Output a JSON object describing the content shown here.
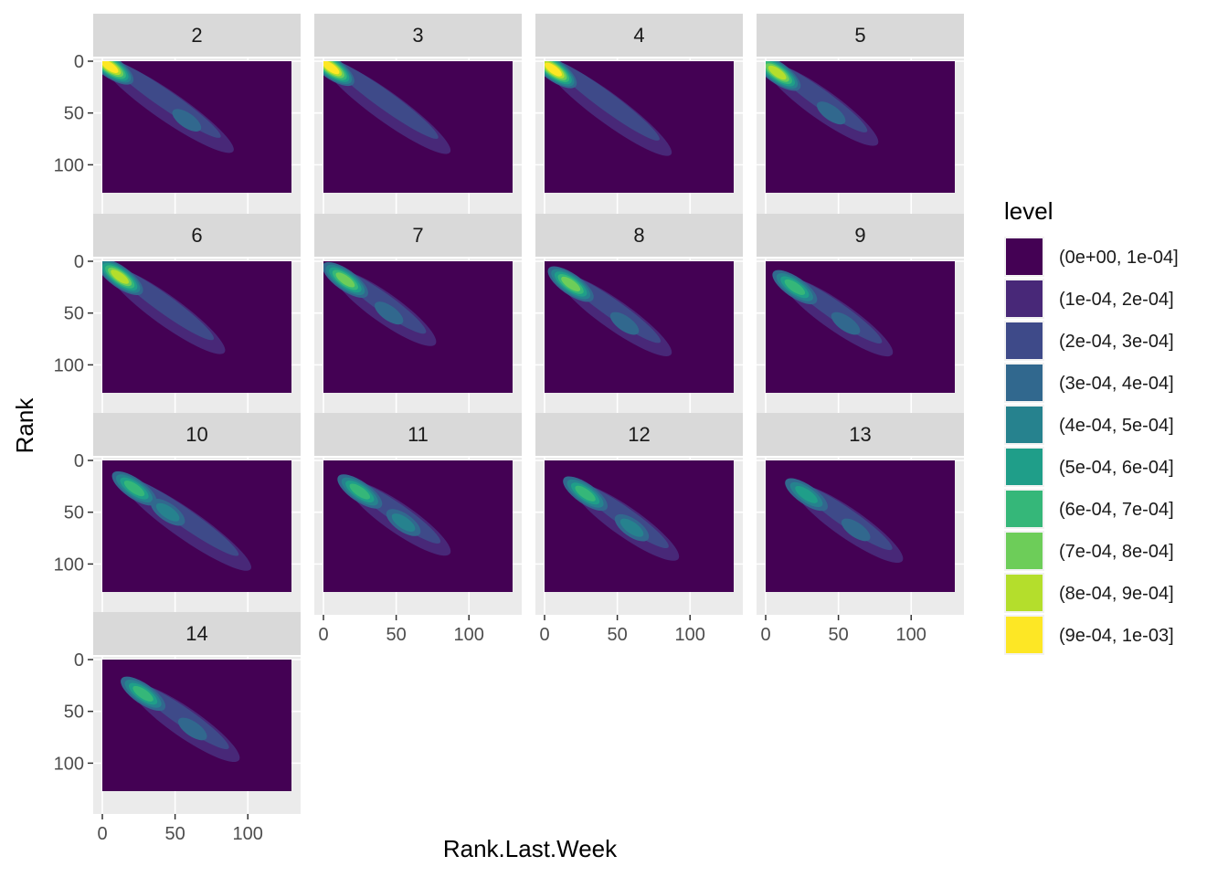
{
  "chart_data": {
    "type": "faceted_filled_density_contour",
    "xlabel": "Rank.Last.Week",
    "ylabel": "Rank",
    "x_range": [
      0,
      130
    ],
    "y_range": [
      0,
      127
    ],
    "x_ticks": [
      0,
      50,
      100
    ],
    "y_ticks": [
      0,
      50,
      100
    ],
    "y_reversed": true,
    "grid": true,
    "legend": {
      "title": "level",
      "position": "right",
      "entries": [
        {
          "label": "(0e+00, 1e-04]",
          "color": "#440154"
        },
        {
          "label": "(1e-04, 2e-04]",
          "color": "#482878"
        },
        {
          "label": "(2e-04, 3e-04]",
          "color": "#3E4A89"
        },
        {
          "label": "(3e-04, 4e-04]",
          "color": "#31688E"
        },
        {
          "label": "(4e-04, 5e-04]",
          "color": "#26828E"
        },
        {
          "label": "(5e-04, 6e-04]",
          "color": "#1F9E89"
        },
        {
          "label": "(6e-04, 7e-04]",
          "color": "#35B779"
        },
        {
          "label": "(7e-04, 8e-04]",
          "color": "#6DCD59"
        },
        {
          "label": "(8e-04, 9e-04]",
          "color": "#B4DE2C"
        },
        {
          "label": "(9e-04, 1e-03]",
          "color": "#FDE725"
        }
      ]
    },
    "facets": [
      {
        "label": "2",
        "modes": [
          {
            "x": 5,
            "y": 5,
            "peak": 9
          },
          {
            "x": 58,
            "y": 57,
            "peak": 3
          }
        ]
      },
      {
        "label": "3",
        "modes": [
          {
            "x": 5,
            "y": 6,
            "peak": 9
          },
          {
            "x": 55,
            "y": 58,
            "peak": 2
          }
        ]
      },
      {
        "label": "4",
        "modes": [
          {
            "x": 6,
            "y": 8,
            "peak": 9
          },
          {
            "x": 55,
            "y": 60,
            "peak": 2
          }
        ]
      },
      {
        "label": "5",
        "modes": [
          {
            "x": 8,
            "y": 11,
            "peak": 8
          },
          {
            "x": 45,
            "y": 50,
            "peak": 3
          }
        ]
      },
      {
        "label": "6",
        "modes": [
          {
            "x": 12,
            "y": 15,
            "peak": 8
          },
          {
            "x": 52,
            "y": 58,
            "peak": 2
          }
        ]
      },
      {
        "label": "7",
        "modes": [
          {
            "x": 15,
            "y": 18,
            "peak": 7
          },
          {
            "x": 45,
            "y": 50,
            "peak": 3
          }
        ]
      },
      {
        "label": "8",
        "modes": [
          {
            "x": 18,
            "y": 22,
            "peak": 7
          },
          {
            "x": 55,
            "y": 60,
            "peak": 3
          }
        ]
      },
      {
        "label": "9",
        "modes": [
          {
            "x": 20,
            "y": 25,
            "peak": 6
          },
          {
            "x": 55,
            "y": 60,
            "peak": 3
          }
        ]
      },
      {
        "label": "10",
        "modes": [
          {
            "x": 22,
            "y": 27,
            "peak": 6
          },
          {
            "x": 45,
            "y": 50,
            "peak": 4
          },
          {
            "x": 70,
            "y": 75,
            "peak": 2
          }
        ]
      },
      {
        "label": "11",
        "modes": [
          {
            "x": 25,
            "y": 30,
            "peak": 6
          },
          {
            "x": 55,
            "y": 60,
            "peak": 4
          }
        ]
      },
      {
        "label": "12",
        "modes": [
          {
            "x": 28,
            "y": 32,
            "peak": 6
          },
          {
            "x": 60,
            "y": 65,
            "peak": 4
          }
        ]
      },
      {
        "label": "13",
        "modes": [
          {
            "x": 28,
            "y": 33,
            "peak": 5
          },
          {
            "x": 62,
            "y": 67,
            "peak": 3
          }
        ]
      },
      {
        "label": "14",
        "modes": [
          {
            "x": 28,
            "y": 33,
            "peak": 6
          },
          {
            "x": 62,
            "y": 67,
            "peak": 3
          }
        ]
      }
    ]
  }
}
